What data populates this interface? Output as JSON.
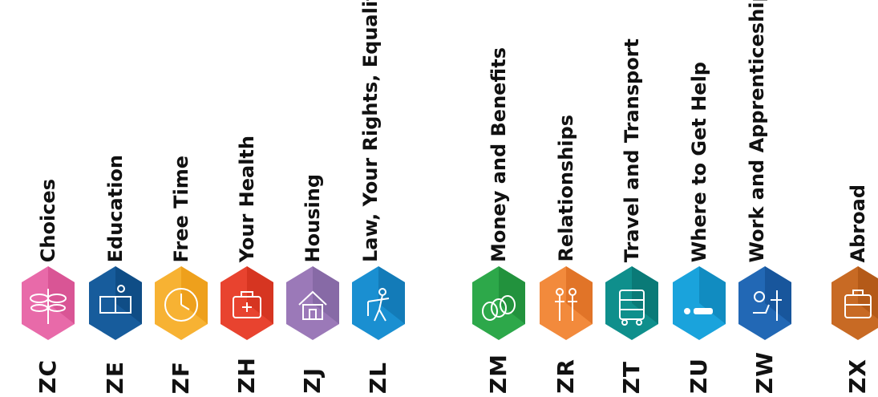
{
  "categories": [
    {
      "code": "ZC",
      "title": "Choices",
      "color": "#e86aa9",
      "shade": "#d95595",
      "icon": "dragonfly-icon"
    },
    {
      "code": "ZE",
      "title": "Education",
      "color": "#175c9c",
      "shade": "#0f4d86",
      "icon": "abc-book-icon"
    },
    {
      "code": "ZF",
      "title": "Free Time",
      "color": "#f7b233",
      "shade": "#eea01c",
      "icon": "clock-icon"
    },
    {
      "code": "ZH",
      "title": "Your Health",
      "color": "#e8432f",
      "shade": "#d63521",
      "icon": "first-aid-kit-icon"
    },
    {
      "code": "ZJ",
      "title": "Housing",
      "color": "#9b79b8",
      "shade": "#876aa6",
      "icon": "house-icon"
    },
    {
      "code": "ZL",
      "title": "Law, Your Rights, Equality and Citizenship",
      "color": "#1a8fd1",
      "shade": "#137bb8",
      "icon": "figure-icon"
    },
    {
      "code": "ZM",
      "title": "Money and Benefits",
      "color": "#2da84a",
      "shade": "#22923d",
      "icon": "coins-icon"
    },
    {
      "code": "ZR",
      "title": "Relationships",
      "color": "#f28a3c",
      "shade": "#e17428",
      "icon": "people-icon"
    },
    {
      "code": "ZT",
      "title": "Travel and Transport",
      "color": "#0f8f8c",
      "shade": "#0a7a77",
      "icon": "bus-icon"
    },
    {
      "code": "ZU",
      "title": "Where to Get Help",
      "color": "#1aa3dc",
      "shade": "#118cc1",
      "icon": "person-lying-icon"
    },
    {
      "code": "ZW",
      "title": "Work and Apprenticeships",
      "color": "#2268b5",
      "shade": "#18569c",
      "icon": "worker-icon"
    },
    {
      "code": "ZX",
      "title": "Abroad",
      "color": "#c86a24",
      "shade": "#b45a18",
      "icon": "suitcase-icon"
    }
  ]
}
